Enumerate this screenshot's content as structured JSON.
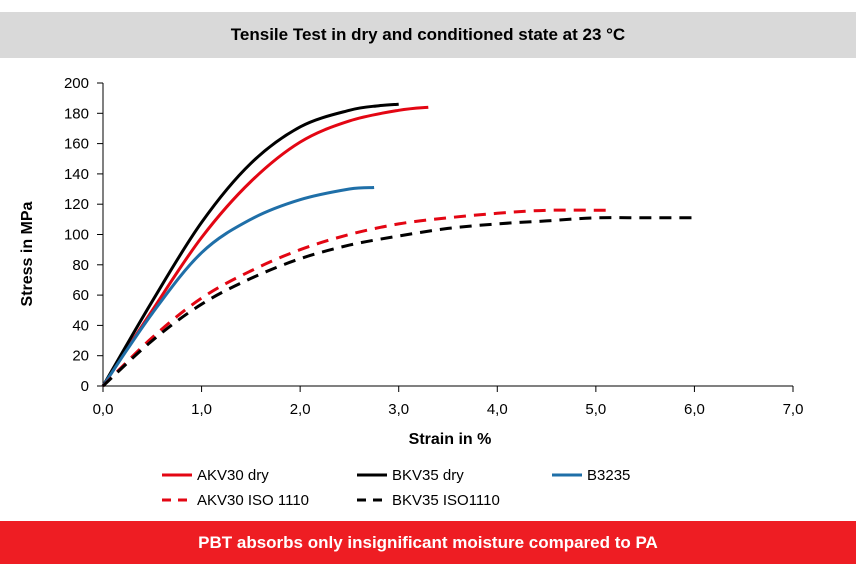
{
  "header": {
    "title": "Tensile Test in dry and conditioned state at 23 °C"
  },
  "footer": {
    "text": "PBT absorbs only insignificant moisture compared to PA"
  },
  "chart_data": {
    "type": "line",
    "title": "Tensile Test in dry and conditioned state at 23 °C",
    "xlabel": "Strain in %",
    "ylabel": "Stress in MPa",
    "xlim": [
      0,
      7
    ],
    "ylim": [
      0,
      200
    ],
    "xticks": [
      0,
      1,
      2,
      3,
      4,
      5,
      6,
      7
    ],
    "xtick_labels": [
      "0,0",
      "1,0",
      "2,0",
      "3,0",
      "4,0",
      "5,0",
      "6,0",
      "7,0"
    ],
    "yticks": [
      0,
      20,
      40,
      60,
      80,
      100,
      120,
      140,
      160,
      180,
      200
    ],
    "ytick_labels": [
      "0",
      "20",
      "40",
      "60",
      "80",
      "100",
      "120",
      "140",
      "160",
      "180",
      "200"
    ],
    "grid": false,
    "legend_position": "bottom",
    "series": [
      {
        "name": "AKV30 dry",
        "color": "#e30613",
        "style": "solid",
        "x": [
          0,
          0.5,
          1.0,
          1.5,
          2.0,
          2.5,
          3.0,
          3.3
        ],
        "y": [
          0,
          50,
          98,
          135,
          161,
          175,
          182,
          184
        ]
      },
      {
        "name": "BKV35 dry",
        "color": "#000000",
        "style": "solid",
        "x": [
          0,
          0.5,
          1.0,
          1.5,
          2.0,
          2.5,
          2.8,
          3.0
        ],
        "y": [
          0,
          56,
          108,
          147,
          171,
          182,
          185,
          186
        ]
      },
      {
        "name": "B3235",
        "color": "#1f6fa8",
        "style": "solid",
        "x": [
          0,
          0.5,
          1.0,
          1.5,
          2.0,
          2.5,
          2.75
        ],
        "y": [
          0,
          48,
          88,
          110,
          123,
          130,
          131
        ]
      },
      {
        "name": "AKV30 ISO 1110",
        "color": "#e30613",
        "style": "dashed",
        "x": [
          0,
          0.5,
          1.0,
          1.5,
          2.0,
          2.5,
          3.0,
          3.5,
          4.0,
          4.5,
          5.1
        ],
        "y": [
          0,
          32,
          58,
          76,
          90,
          100,
          107,
          111,
          114,
          116,
          116
        ]
      },
      {
        "name": "BKV35 ISO1110",
        "color": "#000000",
        "style": "dashed",
        "x": [
          0,
          0.5,
          1.0,
          1.5,
          2.0,
          2.5,
          3.0,
          3.5,
          4.0,
          4.5,
          5.0,
          5.5,
          6.0
        ],
        "y": [
          0,
          30,
          54,
          71,
          84,
          93,
          99,
          104,
          107,
          109,
          111,
          111,
          111
        ]
      }
    ]
  }
}
